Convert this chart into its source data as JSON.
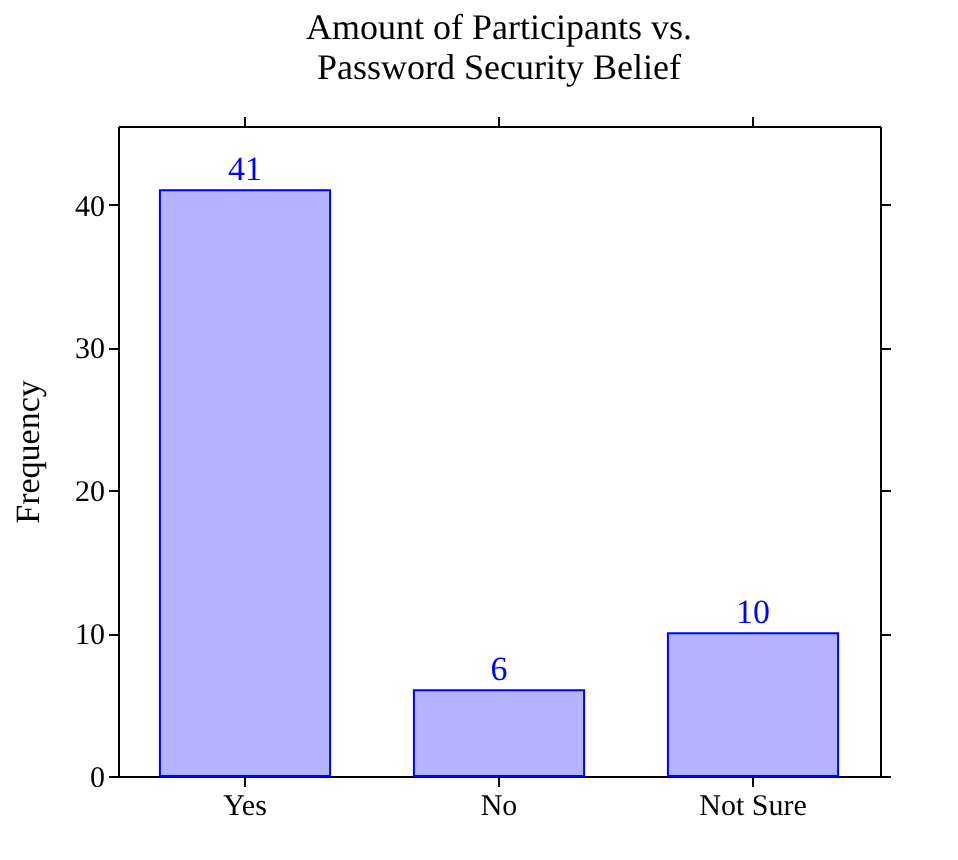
{
  "chart_data": {
    "type": "bar",
    "title": "Amount of Participants vs.\nPassword Security Belief",
    "ylabel": "Frequency",
    "categories": [
      "Yes",
      "No",
      "Not Sure"
    ],
    "values": [
      41,
      6,
      10
    ],
    "color": "#b3b3ff",
    "data_labels": true,
    "ylim": [
      0,
      45.5
    ],
    "yticks": [
      0,
      10,
      20,
      30,
      40
    ],
    "grid": false
  }
}
